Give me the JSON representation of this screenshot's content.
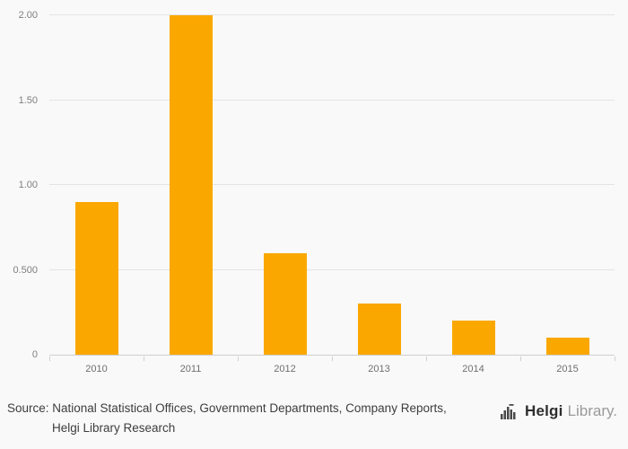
{
  "chart_data": {
    "type": "bar",
    "categories": [
      "2010",
      "2011",
      "2012",
      "2013",
      "2014",
      "2015"
    ],
    "values": [
      0.9,
      2.0,
      0.6,
      0.3,
      0.2,
      0.1
    ],
    "title": "",
    "xlabel": "",
    "ylabel": "",
    "ylim": [
      0,
      2.0
    ],
    "yticks": [
      {
        "value": 0,
        "label": "0"
      },
      {
        "value": 0.5,
        "label": "0.500"
      },
      {
        "value": 1.0,
        "label": "1.00"
      },
      {
        "value": 1.5,
        "label": "1.50"
      },
      {
        "value": 2.0,
        "label": "2.00"
      }
    ],
    "bar_color": "#FAA800",
    "grid": true,
    "legend": false,
    "background": "#f9f9f9"
  },
  "footer": {
    "source_line1": "Source: National Statistical Offices, Government Departments, Company Reports,",
    "source_line2": "Helgi Library Research",
    "logo": {
      "bold": "Helgi",
      "light": "Library."
    }
  },
  "icons": {
    "logo_bars": "bar-chart-logo-icon"
  }
}
